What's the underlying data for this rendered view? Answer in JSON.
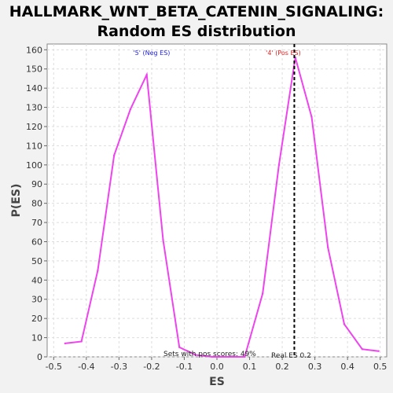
{
  "chart_data": {
    "type": "line",
    "title_lines": [
      "HALLMARK_WNT_BETA_CATENIN_SIGNALING:",
      "Random ES distribution"
    ],
    "xlabel": "ES",
    "ylabel": "P(ES)",
    "xlim": [
      -0.52,
      0.52
    ],
    "ylim": [
      0,
      163
    ],
    "x_ticks": [
      -0.5,
      -0.4,
      -0.3,
      -0.2,
      -0.1,
      0.0,
      0.1,
      0.2,
      0.3,
      0.4,
      0.5
    ],
    "x_tick_labels": [
      "-0.5",
      "-0.4",
      "-0.3",
      "-0.2",
      "-0.1",
      "0.0",
      "0.1",
      "0.2",
      "0.3",
      "0.4",
      "0.5"
    ],
    "y_ticks": [
      0,
      10,
      20,
      30,
      40,
      50,
      60,
      70,
      80,
      90,
      100,
      110,
      120,
      130,
      140,
      150,
      160
    ],
    "grid": true,
    "line_color": "#ee44ee",
    "series": [
      {
        "x": [
          -0.465,
          -0.415,
          -0.365,
          -0.315,
          -0.265,
          -0.215,
          -0.165,
          -0.115,
          -0.065,
          -0.015,
          0.035,
          0.085,
          0.14,
          0.19,
          0.24,
          0.29,
          0.34,
          0.39,
          0.445,
          0.495
        ],
        "y": [
          7,
          8,
          45,
          105,
          129,
          147,
          61,
          5,
          1,
          0,
          0,
          0,
          33,
          100,
          156,
          125,
          57,
          17,
          4,
          3
        ]
      }
    ],
    "markers": [
      {
        "label": "'5' (Neg ES)",
        "x": -0.2,
        "color": "#2222dd"
      },
      {
        "label": "'4' (Pos ES)",
        "x": 0.237,
        "color": "#dd2222"
      }
    ],
    "real_es": {
      "x": 0.237,
      "label": "Real ES 0.2"
    },
    "annotation": "Sets with pos scores: 49%"
  }
}
